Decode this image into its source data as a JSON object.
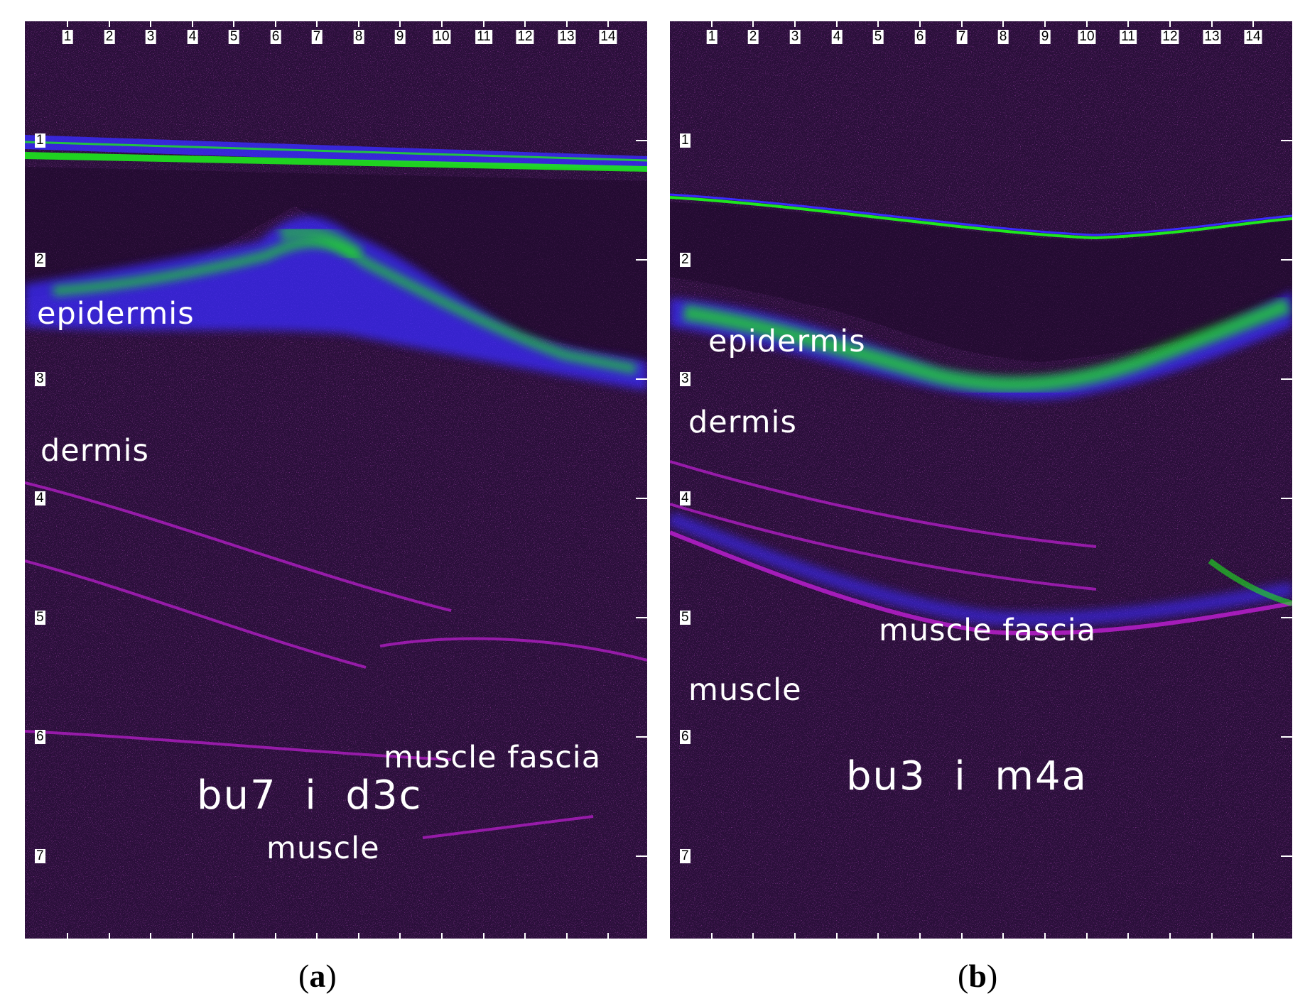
{
  "x_ticks": [
    "1",
    "2",
    "3",
    "4",
    "5",
    "6",
    "7",
    "8",
    "9",
    "10",
    "11",
    "12",
    "13",
    "14"
  ],
  "y_ticks": [
    "1",
    "2",
    "3",
    "4",
    "5",
    "6",
    "7"
  ],
  "colors": {
    "background": "#2a0f3a",
    "speckle": "#c21fd6",
    "echo_blue": "#3a2cff",
    "echo_green": "#1ee81e"
  },
  "panel_a": {
    "labels": {
      "epidermis": "epidermis",
      "dermis": "dermis",
      "muscle_fascia": "muscle fascia",
      "muscle": "muscle",
      "code": "bu7  i  d3c"
    },
    "caption": {
      "open": "(",
      "letter": "a",
      "close": ")"
    }
  },
  "panel_b": {
    "labels": {
      "epidermis": "epidermis",
      "dermis": "dermis",
      "muscle_fascia": "muscle fascia",
      "muscle": "muscle",
      "code": "bu3  i  m4a"
    },
    "caption": {
      "open": "(",
      "letter": "b",
      "close": ")"
    }
  }
}
